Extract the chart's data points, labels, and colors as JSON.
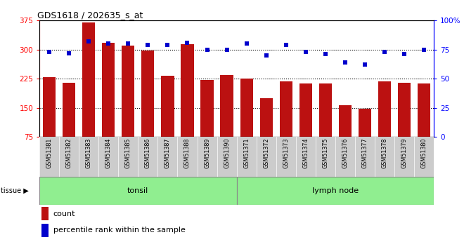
{
  "title": "GDS1618 / 202635_s_at",
  "samples": [
    "GSM51381",
    "GSM51382",
    "GSM51383",
    "GSM51384",
    "GSM51385",
    "GSM51386",
    "GSM51387",
    "GSM51388",
    "GSM51389",
    "GSM51390",
    "GSM51371",
    "GSM51372",
    "GSM51373",
    "GSM51374",
    "GSM51375",
    "GSM51376",
    "GSM51377",
    "GSM51378",
    "GSM51379",
    "GSM51380"
  ],
  "count": [
    228,
    215,
    370,
    318,
    310,
    298,
    232,
    314,
    222,
    235,
    225,
    175,
    218,
    213,
    213,
    157,
    148,
    218,
    215,
    213
  ],
  "percentile": [
    73,
    72,
    82,
    80,
    80,
    79,
    79,
    81,
    75,
    75,
    80,
    70,
    79,
    73,
    71,
    64,
    62,
    73,
    71,
    75
  ],
  "bar_color": "#BB1111",
  "dot_color": "#0000CC",
  "tissue_color": "#90EE90",
  "left_ylim": [
    75,
    375
  ],
  "right_ylim": [
    0,
    100
  ],
  "left_yticks": [
    75,
    150,
    225,
    300,
    375
  ],
  "right_yticks": [
    0,
    25,
    50,
    75,
    100
  ],
  "right_yticklabels": [
    "0",
    "25",
    "50",
    "75",
    "100%"
  ],
  "grid_lines": [
    150,
    225,
    300
  ],
  "legend_count": "count",
  "legend_pct": "percentile rank within the sample",
  "tonsil_label": "tonsil",
  "lymph_label": "lymph node",
  "tissue_divider": 10,
  "n_samples": 20
}
